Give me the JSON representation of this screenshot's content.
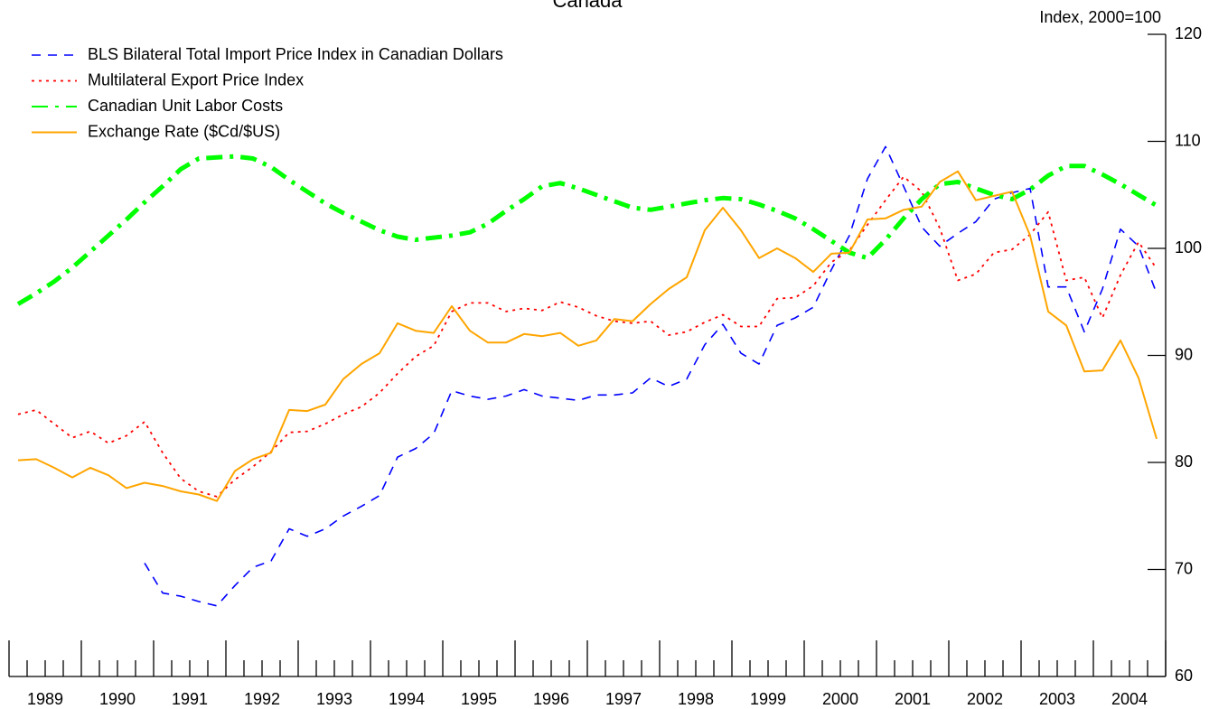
{
  "chart_data": {
    "type": "line",
    "title": "Canada",
    "y_axis_label": "Index, 2000=100",
    "x": [
      1989.125,
      1989.375,
      1989.625,
      1989.875,
      1990.125,
      1990.375,
      1990.625,
      1990.875,
      1991.125,
      1991.375,
      1991.625,
      1991.875,
      1992.125,
      1992.375,
      1992.625,
      1992.875,
      1993.125,
      1993.375,
      1993.625,
      1993.875,
      1994.125,
      1994.375,
      1994.625,
      1994.875,
      1995.125,
      1995.375,
      1995.625,
      1995.875,
      1996.125,
      1996.375,
      1996.625,
      1996.875,
      1997.125,
      1997.375,
      1997.625,
      1997.875,
      1998.125,
      1998.375,
      1998.625,
      1998.875,
      1999.125,
      1999.375,
      1999.625,
      1999.875,
      2000.125,
      2000.375,
      2000.625,
      2000.875,
      2001.125,
      2001.375,
      2001.625,
      2001.875,
      2002.125,
      2002.375,
      2002.625,
      2002.875,
      2003.125,
      2003.375,
      2003.625,
      2003.875,
      2004.125,
      2004.375,
      2004.625,
      2004.875
    ],
    "series": [
      {
        "name": "BLS Bilateral Total Import Price Index in Canadian Dollars",
        "color": "#0000ff",
        "dash": "10,8",
        "width": 1.6,
        "values": [
          null,
          null,
          null,
          null,
          null,
          null,
          null,
          70.6,
          67.8,
          67.5,
          67.0,
          66.6,
          68.5,
          70.2,
          70.8,
          73.8,
          73.1,
          73.8,
          75.0,
          75.9,
          76.9,
          80.5,
          81.3,
          82.7,
          86.7,
          86.2,
          85.9,
          86.2,
          86.8,
          86.2,
          86.0,
          85.8,
          86.3,
          86.3,
          86.5,
          87.9,
          87.1,
          87.8,
          91.0,
          92.9,
          90.2,
          89.2,
          92.8,
          93.5,
          94.5,
          98.0,
          101.2,
          106.5,
          109.5,
          105.8,
          102.0,
          100.2,
          101.4,
          102.5,
          104.6,
          105.2,
          105.6,
          96.4,
          96.4,
          92.2,
          96.2,
          101.8,
          100.2,
          95.8
        ]
      },
      {
        "name": "Multilateral Export Price Index",
        "color": "#ff0000",
        "dash": "3,5",
        "width": 1.8,
        "values": [
          84.5,
          84.9,
          83.6,
          82.3,
          82.9,
          81.8,
          82.5,
          83.8,
          80.9,
          78.5,
          77.3,
          76.8,
          78.4,
          79.6,
          81.0,
          82.8,
          82.9,
          83.6,
          84.5,
          85.2,
          86.5,
          88.3,
          89.9,
          90.9,
          94.1,
          94.9,
          94.9,
          94.1,
          94.4,
          94.2,
          95.0,
          94.5,
          93.7,
          93.2,
          93.0,
          93.2,
          91.9,
          92.2,
          93.1,
          93.8,
          92.7,
          92.7,
          95.3,
          95.4,
          96.5,
          98.7,
          99.8,
          102.2,
          104.5,
          106.7,
          105.3,
          101.9,
          97.0,
          97.6,
          99.6,
          99.9,
          101.3,
          103.4,
          97.0,
          97.3,
          93.5,
          97.5,
          100.6,
          98.1
        ]
      },
      {
        "name": "Canadian Unit Labor Costs",
        "color": "#00ff00",
        "dash": "18,8,4,8",
        "width": 5,
        "values": [
          94.8,
          95.8,
          96.9,
          98.2,
          99.7,
          101.2,
          102.7,
          104.3,
          105.8,
          107.4,
          108.4,
          108.5,
          108.6,
          108.4,
          107.6,
          106.4,
          105.3,
          104.2,
          103.3,
          102.5,
          101.7,
          101.1,
          100.8,
          101.0,
          101.2,
          101.5,
          102.3,
          103.5,
          104.6,
          105.8,
          106.1,
          105.6,
          105.0,
          104.4,
          103.8,
          103.6,
          103.9,
          104.2,
          104.5,
          104.7,
          104.6,
          104.1,
          103.5,
          102.8,
          101.8,
          100.7,
          99.6,
          99.1,
          100.8,
          102.8,
          104.6,
          106.0,
          106.2,
          105.6,
          105.0,
          104.6,
          105.5,
          106.8,
          107.7,
          107.7,
          106.9,
          106.0,
          105.0,
          104.0
        ]
      },
      {
        "name": "Exchange Rate ($Cd/$US)",
        "color": "#ffa500",
        "dash": "none",
        "width": 2,
        "values": [
          80.2,
          80.3,
          79.5,
          78.6,
          79.5,
          78.8,
          77.6,
          78.1,
          77.8,
          77.3,
          77.0,
          76.4,
          79.2,
          80.3,
          80.9,
          84.9,
          84.8,
          85.4,
          87.8,
          89.2,
          90.2,
          93.0,
          92.3,
          92.1,
          94.6,
          92.3,
          91.2,
          91.2,
          92.0,
          91.8,
          92.1,
          90.9,
          91.4,
          93.4,
          93.2,
          94.8,
          96.2,
          97.3,
          101.7,
          103.8,
          101.7,
          99.1,
          100.0,
          99.1,
          97.8,
          99.5,
          99.6,
          102.7,
          102.8,
          103.6,
          103.9,
          106.2,
          107.2,
          104.5,
          104.9,
          105.3,
          101.2,
          94.1,
          92.8,
          88.5,
          88.6,
          91.4,
          87.9,
          82.2
        ]
      }
    ],
    "xlim": [
      1989,
      2005
    ],
    "xticks": [
      {
        "value": 1989.5,
        "label": "1989"
      },
      {
        "value": 1990.5,
        "label": "1990"
      },
      {
        "value": 1991.5,
        "label": "1991"
      },
      {
        "value": 1992.5,
        "label": "1992"
      },
      {
        "value": 1993.5,
        "label": "1993"
      },
      {
        "value": 1994.5,
        "label": "1994"
      },
      {
        "value": 1995.5,
        "label": "1995"
      },
      {
        "value": 1996.5,
        "label": "1996"
      },
      {
        "value": 1997.5,
        "label": "1997"
      },
      {
        "value": 1998.5,
        "label": "1998"
      },
      {
        "value": 1999.5,
        "label": "1999"
      },
      {
        "value": 2000.5,
        "label": "2000"
      },
      {
        "value": 2001.5,
        "label": "2001"
      },
      {
        "value": 2002.5,
        "label": "2002"
      },
      {
        "value": 2003.5,
        "label": "2003"
      },
      {
        "value": 2004.5,
        "label": "2004"
      }
    ],
    "x_major_ticks": [
      1989,
      1990,
      1991,
      1992,
      1993,
      1994,
      1995,
      1996,
      1997,
      1998,
      1999,
      2000,
      2001,
      2002,
      2003,
      2004,
      2005
    ],
    "x_minor_ticks": [
      1989.25,
      1989.5,
      1989.75,
      1990.25,
      1990.5,
      1990.75,
      1991.25,
      1991.5,
      1991.75,
      1992.25,
      1992.5,
      1992.75,
      1993.25,
      1993.5,
      1993.75,
      1994.25,
      1994.5,
      1994.75,
      1995.25,
      1995.5,
      1995.75,
      1996.25,
      1996.5,
      1996.75,
      1997.25,
      1997.5,
      1997.75,
      1998.25,
      1998.5,
      1998.75,
      1999.25,
      1999.5,
      1999.75,
      2000.25,
      2000.5,
      2000.75,
      2001.25,
      2001.5,
      2001.75,
      2002.25,
      2002.5,
      2002.75,
      2003.25,
      2003.5,
      2003.75,
      2004.25,
      2004.5,
      2004.75
    ],
    "ylim": [
      60,
      120
    ],
    "yticks": [
      60,
      70,
      80,
      90,
      100,
      110,
      120
    ],
    "y_axis_side": "right",
    "legend": "upper left",
    "grid": false
  }
}
